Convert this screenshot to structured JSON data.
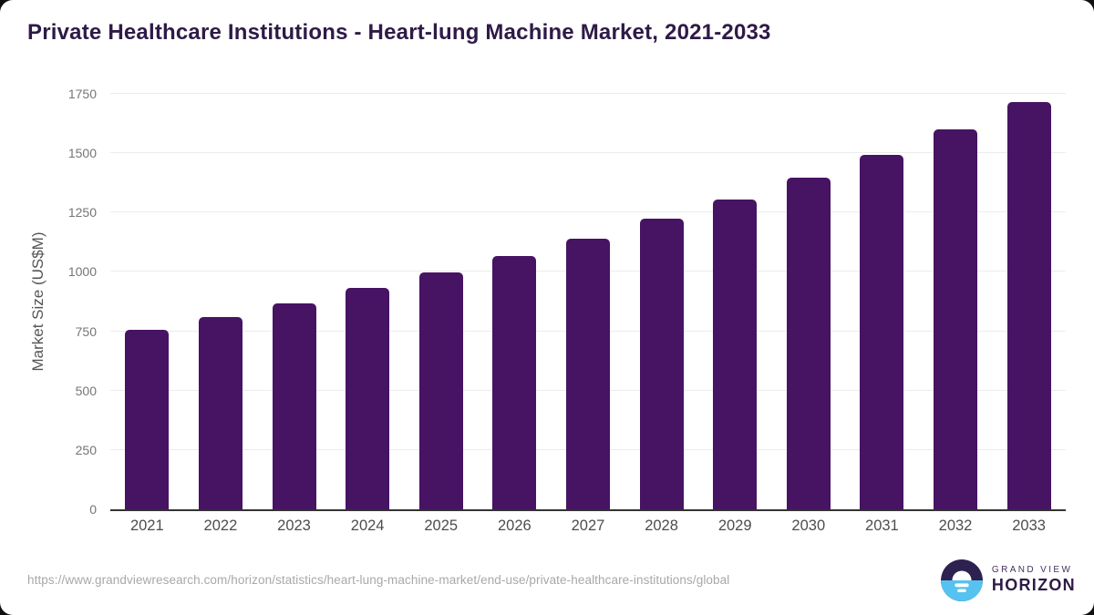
{
  "header": {
    "title": "Private Healthcare Institutions - Heart-lung Machine Market, 2021-2033"
  },
  "chart_data": {
    "type": "bar",
    "title": "Private Healthcare Institutions - Heart-lung Machine Market, 2021-2033",
    "categories": [
      "2021",
      "2022",
      "2023",
      "2024",
      "2025",
      "2026",
      "2027",
      "2028",
      "2029",
      "2030",
      "2031",
      "2032",
      "2033"
    ],
    "values": [
      755,
      809,
      866,
      932,
      998,
      1067,
      1140,
      1224,
      1305,
      1396,
      1494,
      1601,
      1714
    ],
    "xlabel": "",
    "ylabel": "Market Size (US$M)",
    "ylim": [
      0,
      1750
    ],
    "yticks": [
      0,
      250,
      500,
      750,
      1000,
      1250,
      1500,
      1750
    ],
    "grid": "horizontal",
    "legend": "none",
    "bar_color": "#471363"
  },
  "footer": {
    "source_url": "https://www.grandviewresearch.com/horizon/statistics/heart-lung-machine-market/end-use/private-healthcare-institutions/global",
    "logo": {
      "line1": "GRAND VIEW",
      "line2": "HORIZON",
      "icon": "horizon-sun-circle-icon"
    }
  },
  "colors": {
    "bar": "#471363",
    "title_text": "#2e1a47",
    "axis_title_text": "#555555",
    "y_tick_text": "#757575",
    "x_tick_text": "#4d4d4d",
    "gridline": "#ececec",
    "axis_line": "#333333",
    "url_text": "#a8a8a8",
    "logo_dark": "#2d2150",
    "logo_blue": "#56c2f0"
  }
}
